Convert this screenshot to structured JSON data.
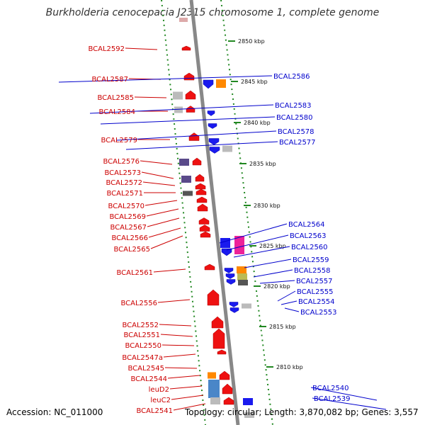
{
  "title": "Burkholderia cenocepacia J2315 chromosome 1, complete genome",
  "footer": {
    "accession": "Accession: NC_011000",
    "summary": "Topology: circular; Length: 3,870,082 bp; Genes: 3,557"
  },
  "colors": {
    "forward_gene": "#ee1111",
    "reverse_gene": "#1a1aee",
    "left_label": "#cc0000",
    "right_label": "#0000cc",
    "backbone": "#888888",
    "track_dots": "#228822"
  },
  "scale_ticks": [
    "2850 kbp",
    "2845 kbp",
    "2840 kbp",
    "2835 kbp",
    "2830 kbp",
    "2825 kbp",
    "2820 kbp",
    "2815 kbp",
    "2810 kbp"
  ],
  "forward_labels": [
    "BCAL2592",
    "BCAL2587",
    "BCAL2585",
    "BCAL2584",
    "BCAL2579",
    "BCAL2576",
    "BCAL2573",
    "BCAL2572",
    "BCAL2571",
    "BCAL2570",
    "BCAL2569",
    "BCAL2567",
    "BCAL2566",
    "BCAL2565",
    "BCAL2561",
    "BCAL2556",
    "BCAL2552",
    "BCAL2551",
    "BCAL2550",
    "BCAL2547a",
    "BCAL2545",
    "BCAL2544",
    "leuD2",
    "leuC2",
    "BCAL2541"
  ],
  "reverse_labels": [
    "BCAL2586",
    "BCAL2583",
    "BCAL2580",
    "BCAL2578",
    "BCAL2577",
    "BCAL2564",
    "BCAL2563",
    "BCAL2560",
    "BCAL2559",
    "BCAL2558",
    "BCAL2557",
    "BCAL2555",
    "BCAL2554",
    "BCAL2553",
    "BCAL2540",
    "BCAL2539"
  ]
}
